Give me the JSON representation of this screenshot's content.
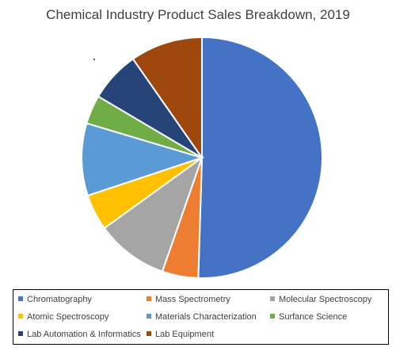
{
  "chart_data": {
    "type": "pie",
    "title": "Chemical Industry Product Sales Breakdown, 2019",
    "unit": "percent (estimated)",
    "slices": [
      {
        "label": "Chromatography",
        "value": 52,
        "color": "#4472C4"
      },
      {
        "label": "Mass Spectrometry",
        "value": 5,
        "color": "#ED7D31"
      },
      {
        "label": "Molecular Spectroscopy",
        "value": 10,
        "color": "#A5A5A5"
      },
      {
        "label": "Atomic Spectroscopy",
        "value": 5,
        "color": "#FFC000"
      },
      {
        "label": "Materials Characterization",
        "value": 10,
        "color": "#5B9BD5"
      },
      {
        "label": "Surfance Science",
        "value": 4,
        "color": "#70AD47"
      },
      {
        "label": "Lab Automation & Informatics",
        "value": 7,
        "color": "#264478"
      },
      {
        "label": "Lab Equipment",
        "value": 10,
        "color": "#9E480E"
      }
    ],
    "start_angle_deg": 0,
    "direction": "clockwise",
    "legend_position": "bottom"
  }
}
